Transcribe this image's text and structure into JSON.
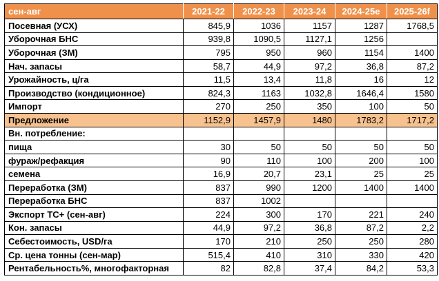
{
  "header": {
    "period_label": "сен-авг",
    "columns": [
      "2021-22",
      "2022-23",
      "2023-24",
      "2024-25e",
      "2025-26f"
    ]
  },
  "rows": [
    {
      "label": "Посевная (УСХ)",
      "values": [
        "845,9",
        "1036",
        "1157",
        "1287",
        "1768,5"
      ],
      "highlight": false
    },
    {
      "label": "Уборочная БНС",
      "values": [
        "939,8",
        "1090,5",
        "1127,1",
        "1256",
        ""
      ],
      "highlight": false
    },
    {
      "label": "Уборочная (ЗМ)",
      "values": [
        "795",
        "950",
        "960",
        "1154",
        "1400"
      ],
      "highlight": false
    },
    {
      "label": "Нач. запасы",
      "values": [
        "58,7",
        "44,9",
        "97,2",
        "36,8",
        "87,2"
      ],
      "highlight": false
    },
    {
      "label": "Урожайность, ц/га",
      "values": [
        "11,5",
        "13,4",
        "11,8",
        "16",
        "12"
      ],
      "highlight": false
    },
    {
      "label": "Производство (кондиционное)",
      "values": [
        "824,3",
        "1163",
        "1032,8",
        "1646,4",
        "1580"
      ],
      "highlight": false
    },
    {
      "label": "Импорт",
      "values": [
        "270",
        "250",
        "350",
        "100",
        "50"
      ],
      "highlight": false
    },
    {
      "label": "Предложение",
      "values": [
        "1152,9",
        "1457,9",
        "1480",
        "1783,2",
        "1717,2"
      ],
      "highlight": true
    },
    {
      "label": "Вн. потребление:",
      "values": [
        "",
        "",
        "",
        "",
        ""
      ],
      "highlight": false
    },
    {
      "label": "пища",
      "values": [
        "30",
        "50",
        "50",
        "50",
        "50"
      ],
      "highlight": false
    },
    {
      "label": "фураж/рефакция",
      "values": [
        "90",
        "110",
        "100",
        "200",
        "100"
      ],
      "highlight": false
    },
    {
      "label": "семена",
      "values": [
        "16,9",
        "20,7",
        "23,1",
        "25",
        "25"
      ],
      "highlight": false
    },
    {
      "label": "Переработка (ЗМ)",
      "values": [
        "837",
        "990",
        "1200",
        "1400",
        "1400"
      ],
      "highlight": false
    },
    {
      "label": "Переработка БНС",
      "values": [
        "837",
        "1002",
        "",
        "",
        ""
      ],
      "highlight": false
    },
    {
      "label": "Экспорт ТС+ (сен-авг)",
      "values": [
        "224",
        "300",
        "170",
        "221",
        "240"
      ],
      "highlight": false
    },
    {
      "label": "Кон. запасы",
      "values": [
        "44,9",
        "97,2",
        "36,8",
        "87,2",
        "2,2"
      ],
      "highlight": false
    },
    {
      "label": "Себестоимость, USD/га",
      "values": [
        "170",
        "210",
        "250",
        "250",
        "280"
      ],
      "highlight": false
    },
    {
      "label": "Ср. цена тонны (сен-мар)",
      "values": [
        "515,4",
        "410",
        "310",
        "330",
        "420"
      ],
      "highlight": false
    },
    {
      "label": "Рентабельность%, многофакторная",
      "values": [
        "82",
        "82,8",
        "37,4",
        "84,2",
        "53,3"
      ],
      "highlight": false
    }
  ],
  "colors": {
    "header_bg": "#F0914B",
    "header_text": "#FFFFFF",
    "highlight_bg": "#F8C28F",
    "border": "#000000"
  }
}
